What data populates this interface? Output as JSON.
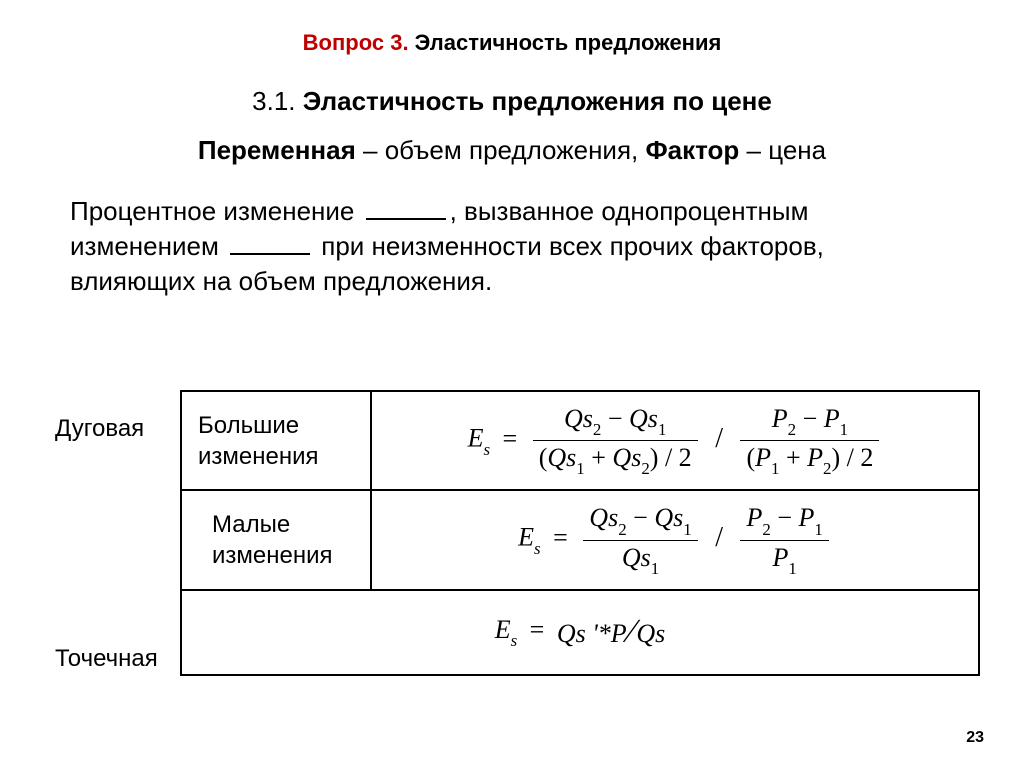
{
  "header": {
    "red_prefix": "Вопрос 3.",
    "title_rest": "  Эластичность предложения"
  },
  "subtitle": {
    "num": "3.1.",
    "text": "Эластичность предложения по цене"
  },
  "varfact": {
    "var_label": "Переменная",
    "var_text": " – объем предложения, ",
    "fact_label": "Фактор",
    "fact_text": " – цена"
  },
  "definition": {
    "part1": "Процентное изменение ",
    "part2": ", вызванное однопроцентным изменением ",
    "part3": " при неизменности всех прочих факторов, влияющих на объем предложения."
  },
  "labels": {
    "arc": "Дуговая",
    "point": "Точечная"
  },
  "rows": {
    "r1_desc": "Большие изменения",
    "r2_desc": "Малые изменения"
  },
  "formula": {
    "Es": "E",
    "s_sub": "s",
    "Qs": "Qs",
    "P": "P",
    "eq": "=",
    "minus": "−",
    "plus": "+",
    "div2": "/ 2",
    "slash": "/",
    "prime_expr": "Qs '*P",
    "over": "Qs",
    "sub1": "1",
    "sub2": "2"
  },
  "page": "23"
}
